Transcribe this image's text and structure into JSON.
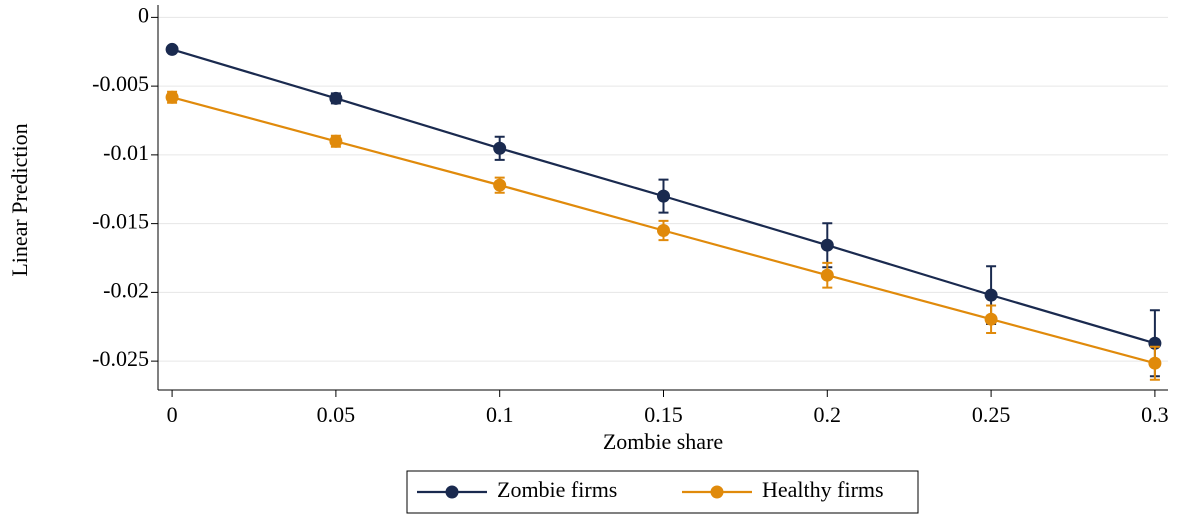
{
  "chart_data": {
    "type": "line",
    "x_label": "Zombie share",
    "y_label": "Linear Prediction",
    "x": [
      0,
      0.05,
      0.1,
      0.15,
      0.2,
      0.25,
      0.3
    ],
    "series": [
      {
        "name": "Zombie firms",
        "color": "#1a2a4f",
        "values": [
          -0.00233,
          -0.00589,
          -0.00952,
          -0.013,
          -0.01657,
          -0.0202,
          -0.0237
        ],
        "errors": [
          0.0002,
          0.00036,
          0.00084,
          0.0012,
          0.0016,
          0.0021,
          0.0024
        ]
      },
      {
        "name": "Healthy firms",
        "color": "#e08a0b",
        "values": [
          -0.00581,
          -0.00901,
          -0.0122,
          -0.0155,
          -0.01875,
          -0.02195,
          -0.02515
        ],
        "errors": [
          0.0004,
          0.0004,
          0.00055,
          0.0007,
          0.0009,
          0.001,
          0.0012
        ]
      }
    ],
    "xlim": [
      -0.0043,
      0.304
    ],
    "ylim": [
      -0.0271,
      0.0009
    ],
    "xticks": [
      0,
      0.05,
      0.1,
      0.15,
      0.2,
      0.25,
      0.3
    ],
    "yticks": [
      0,
      -0.005,
      -0.01,
      -0.015,
      -0.02,
      -0.025
    ],
    "grid": true,
    "legend": "bottom"
  }
}
